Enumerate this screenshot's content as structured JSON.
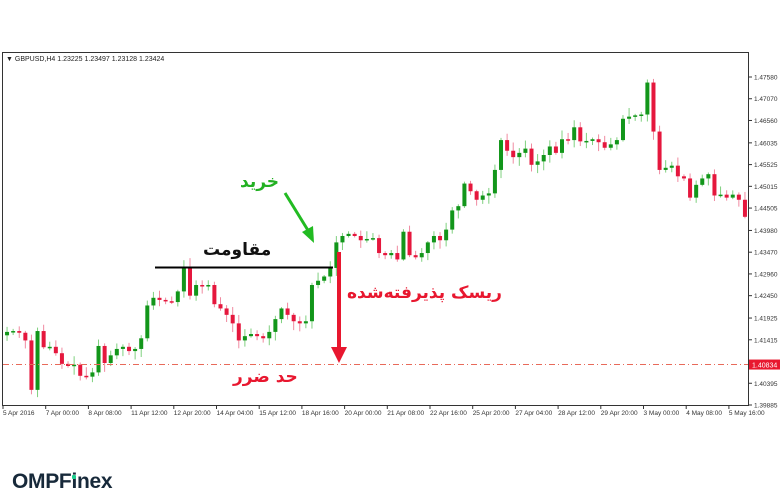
{
  "header": {
    "symbol_line": "▼ GBPUSD,H4  1.23225 1.23497 1.23128 1.23424"
  },
  "annotations": {
    "buy": "خرید",
    "resistance": "مقاومت",
    "accepted_risk": "ریسک پذیرفته‌شده",
    "stop_loss": "حد ضرر"
  },
  "logo": {
    "part1": "OMPF",
    "part2": "i",
    "part3": "nex"
  },
  "colors": {
    "bull": "#12961a",
    "bear": "#e5173d",
    "bull_wick": "#7fd07f",
    "bear_wick": "#f08aa0",
    "stop_line": "#e86a5a",
    "price_label_bg": "#e8172f",
    "buy_arrow": "#22bb22",
    "risk_arrow": "#e8172f"
  },
  "chart_data": {
    "type": "candlestick",
    "title": "GBPUSD,H4",
    "ylim": [
      1.39885,
      1.4758
    ],
    "y_ticks": [
      "1.47580",
      "1.47070",
      "1.46560",
      "1.46035",
      "1.45525",
      "1.45015",
      "1.44505",
      "1.43980",
      "1.43470",
      "1.42960",
      "1.42450",
      "1.41925",
      "1.41415",
      "1.40834",
      "1.40395",
      "1.39885"
    ],
    "highlight_price": "1.40834",
    "x_ticks": [
      "5 Apr 2016",
      "7 Apr 00:00",
      "8 Apr 08:00",
      "11 Apr 12:00",
      "12 Apr 20:00",
      "14 Apr 04:00",
      "15 Apr 12:00",
      "18 Apr 16:00",
      "20 Apr 00:00",
      "21 Apr 08:00",
      "22 Apr 16:00",
      "25 Apr 20:00",
      "27 Apr 04:00",
      "28 Apr 12:00",
      "29 Apr 20:00",
      "3 May 00:00",
      "4 May 08:00",
      "5 May 16:00"
    ],
    "closes": [
      1.416,
      1.4162,
      1.4158,
      1.414,
      1.4024,
      1.4162,
      1.4124,
      1.4125,
      1.411,
      1.4085,
      1.408,
      1.4083,
      1.4057,
      1.4055,
      1.4065,
      1.4127,
      1.4087,
      1.4105,
      1.412,
      1.4125,
      1.4115,
      1.412,
      1.4145,
      1.4222,
      1.424,
      1.4235,
      1.4232,
      1.423,
      1.4255,
      1.4313,
      1.4245,
      1.427,
      1.4268,
      1.427,
      1.4225,
      1.4215,
      1.42,
      1.418,
      1.414,
      1.415,
      1.4155,
      1.415,
      1.4145,
      1.416,
      1.419,
      1.4215,
      1.42,
      1.4185,
      1.418,
      1.4185,
      1.427,
      1.428,
      1.429,
      1.431,
      1.437,
      1.4385,
      1.439,
      1.4385,
      1.4375,
      1.4378,
      1.438,
      1.4345,
      1.434,
      1.4345,
      1.433,
      1.4395,
      1.434,
      1.4335,
      1.4345,
      1.437,
      1.4385,
      1.4375,
      1.44,
      1.4445,
      1.4455,
      1.4508,
      1.449,
      1.447,
      1.448,
      1.4485,
      1.454,
      1.461,
      1.4585,
      1.457,
      1.458,
      1.459,
      1.4552,
      1.456,
      1.4575,
      1.4595,
      1.458,
      1.4612,
      1.461,
      1.464,
      1.4607,
      1.4608,
      1.4612,
      1.4605,
      1.4592,
      1.46,
      1.461,
      1.466,
      1.4665,
      1.4668,
      1.467,
      1.4745,
      1.463,
      1.454,
      1.4545,
      1.455,
      1.4525,
      1.452,
      1.4475,
      1.4505,
      1.452,
      1.453,
      1.448,
      1.4482,
      1.4475,
      1.4482,
      1.447,
      1.443
    ],
    "resistance_level": 1.4311,
    "stop_loss_level": 1.40834
  }
}
